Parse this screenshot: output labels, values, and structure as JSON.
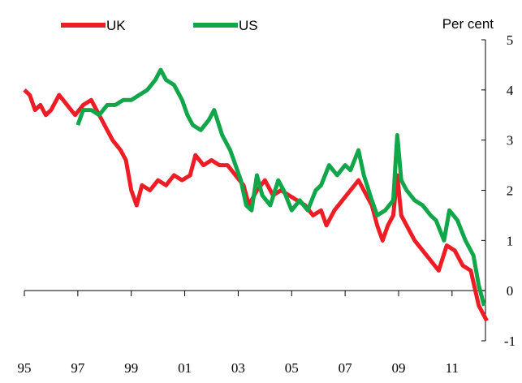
{
  "chart_data": {
    "type": "line",
    "y_axis_label": "Per cent",
    "xlim": [
      1995,
      2012.25
    ],
    "ylim": [
      -1,
      5
    ],
    "xticks": [
      {
        "value": 1995,
        "label": "95"
      },
      {
        "value": 1997,
        "label": "97"
      },
      {
        "value": 1999,
        "label": "99"
      },
      {
        "value": 2001,
        "label": "01"
      },
      {
        "value": 2003,
        "label": "03"
      },
      {
        "value": 2005,
        "label": "05"
      },
      {
        "value": 2007,
        "label": "07"
      },
      {
        "value": 2009,
        "label": "09"
      },
      {
        "value": 2011,
        "label": "11"
      }
    ],
    "yticks": [
      -1,
      0,
      1,
      2,
      3,
      4,
      5
    ],
    "grid": false,
    "series": [
      {
        "name": "UK",
        "color": "#ee1c25",
        "x": [
          1995.0,
          1995.2,
          1995.4,
          1995.6,
          1995.8,
          1996.0,
          1996.3,
          1996.6,
          1996.9,
          1997.2,
          1997.5,
          1997.8,
          1998.0,
          1998.3,
          1998.6,
          1998.8,
          1999.0,
          1999.2,
          1999.4,
          1999.7,
          2000.0,
          2000.3,
          2000.6,
          2000.9,
          2001.2,
          2001.4,
          2001.7,
          2002.0,
          2002.3,
          2002.6,
          2002.9,
          2003.2,
          2003.4,
          2003.7,
          2004.0,
          2004.3,
          2004.6,
          2004.9,
          2005.2,
          2005.5,
          2005.8,
          2006.1,
          2006.3,
          2006.6,
          2006.9,
          2007.2,
          2007.5,
          2007.8,
          2008.0,
          2008.2,
          2008.4,
          2008.6,
          2008.8,
          2008.95,
          2009.1,
          2009.3,
          2009.6,
          2009.9,
          2010.2,
          2010.5,
          2010.8,
          2011.1,
          2011.4,
          2011.7,
          2012.0,
          2012.3
        ],
        "values": [
          4.0,
          3.9,
          3.6,
          3.7,
          3.5,
          3.6,
          3.9,
          3.7,
          3.5,
          3.7,
          3.8,
          3.5,
          3.3,
          3.0,
          2.8,
          2.6,
          2.0,
          1.7,
          2.1,
          2.0,
          2.2,
          2.1,
          2.3,
          2.2,
          2.3,
          2.7,
          2.5,
          2.6,
          2.5,
          2.5,
          2.3,
          2.1,
          1.7,
          2.0,
          2.2,
          1.9,
          2.0,
          1.9,
          1.8,
          1.7,
          1.5,
          1.6,
          1.3,
          1.6,
          1.8,
          2.0,
          2.2,
          1.9,
          1.7,
          1.3,
          1.0,
          1.3,
          1.5,
          2.3,
          1.5,
          1.3,
          1.0,
          0.8,
          0.6,
          0.4,
          0.9,
          0.8,
          0.5,
          0.4,
          -0.3,
          -0.6
        ]
      },
      {
        "name": "US",
        "color": "#12a64b",
        "x": [
          1997.0,
          1997.2,
          1997.5,
          1997.8,
          1998.1,
          1998.4,
          1998.7,
          1999.0,
          1999.3,
          1999.6,
          1999.9,
          2000.1,
          2000.3,
          2000.6,
          2000.9,
          2001.1,
          2001.3,
          2001.6,
          2001.9,
          2002.1,
          2002.4,
          2002.7,
          2002.9,
          2003.1,
          2003.3,
          2003.5,
          2003.7,
          2003.9,
          2004.2,
          2004.5,
          2004.7,
          2005.0,
          2005.3,
          2005.6,
          2005.9,
          2006.1,
          2006.4,
          2006.7,
          2007.0,
          2007.2,
          2007.5,
          2007.7,
          2008.0,
          2008.2,
          2008.5,
          2008.8,
          2008.95,
          2009.1,
          2009.3,
          2009.6,
          2009.9,
          2010.2,
          2010.4,
          2010.7,
          2010.9,
          2011.2,
          2011.5,
          2011.8,
          2012.0,
          2012.2
        ],
        "values": [
          3.3,
          3.6,
          3.6,
          3.5,
          3.7,
          3.7,
          3.8,
          3.8,
          3.9,
          4.0,
          4.2,
          4.4,
          4.2,
          4.1,
          3.8,
          3.5,
          3.3,
          3.2,
          3.4,
          3.6,
          3.1,
          2.8,
          2.5,
          2.2,
          1.7,
          1.6,
          2.3,
          1.9,
          1.7,
          2.2,
          2.0,
          1.6,
          1.8,
          1.6,
          2.0,
          2.1,
          2.5,
          2.3,
          2.5,
          2.4,
          2.8,
          2.3,
          1.8,
          1.5,
          1.6,
          1.8,
          3.1,
          2.2,
          2.0,
          1.8,
          1.7,
          1.5,
          1.4,
          1.0,
          1.6,
          1.4,
          1.0,
          0.7,
          0.1,
          -0.3
        ]
      }
    ]
  }
}
